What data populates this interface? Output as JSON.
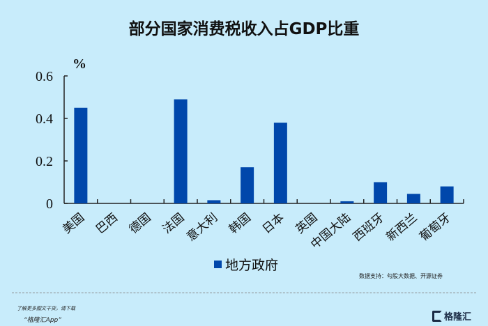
{
  "title": "部分国家消费税收入占GDP比重",
  "chart_data": {
    "type": "bar",
    "title": "部分国家消费税收入占GDP比重",
    "ylabel": "%",
    "xlabel": "",
    "ylim": [
      0,
      0.6
    ],
    "yticks": [
      0,
      0.2,
      0.4,
      0.6
    ],
    "ytick_labels": [
      "0",
      "0.2",
      "0.4",
      "0.6"
    ],
    "categories": [
      "美国",
      "巴西",
      "德国",
      "法国",
      "意大利",
      "韩国",
      "日本",
      "英国",
      "中国大陆",
      "西班牙",
      "新西兰",
      "葡萄牙"
    ],
    "series": [
      {
        "name": "地方政府",
        "color": "#0047ab",
        "values": [
          0.45,
          null,
          null,
          0.49,
          0.015,
          0.17,
          0.38,
          null,
          0.01,
          0.1,
          0.045,
          0.08
        ]
      }
    ],
    "legend": "bottom-center",
    "grid": false
  },
  "source": "数据支持：勾股大数据、开源证券",
  "promo": {
    "line1": "了解更多图文干货，请下载",
    "line2": "“格隆汇App”"
  },
  "logo": "格隆汇"
}
